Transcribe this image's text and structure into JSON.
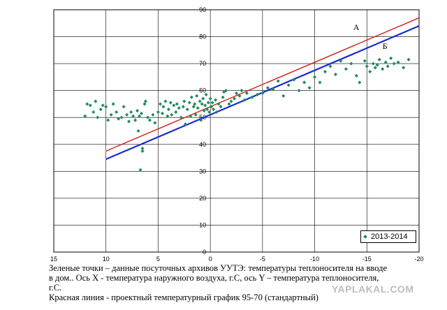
{
  "chart_data": {
    "type": "scatter",
    "x_reversed": true,
    "xlim": [
      15,
      -20
    ],
    "ylim": [
      0,
      90
    ],
    "x_ticks": [
      "15",
      "10",
      "5",
      "0",
      "-5",
      "-10",
      "-15",
      "-20"
    ],
    "y_ticks": [
      "0",
      "10",
      "20",
      "30",
      "40",
      "50",
      "60",
      "70",
      "80",
      "90"
    ],
    "grid": true,
    "legend_position": "bottom-right",
    "series": [
      {
        "name": "2013-2014",
        "color": "#1e8a5a",
        "points": [
          [
            12.0,
            50.5
          ],
          [
            11.8,
            55.0
          ],
          [
            11.5,
            54.5
          ],
          [
            11.2,
            52.0
          ],
          [
            11.0,
            56.0
          ],
          [
            10.8,
            50.0
          ],
          [
            10.5,
            53.0
          ],
          [
            10.3,
            54.5
          ],
          [
            10.0,
            54.0
          ],
          [
            9.8,
            49.0
          ],
          [
            9.5,
            51.0
          ],
          [
            9.3,
            55.0
          ],
          [
            9.0,
            52.0
          ],
          [
            8.8,
            49.5
          ],
          [
            8.5,
            50.0
          ],
          [
            8.3,
            54.0
          ],
          [
            8.0,
            51.0
          ],
          [
            7.8,
            48.5
          ],
          [
            7.6,
            52.0
          ],
          [
            7.4,
            50.5
          ],
          [
            7.2,
            49.0
          ],
          [
            7.0,
            52.5
          ],
          [
            6.9,
            45.0
          ],
          [
            6.8,
            50.5
          ],
          [
            6.7,
            30.5
          ],
          [
            6.6,
            51.5
          ],
          [
            6.5,
            37.5
          ],
          [
            6.5,
            38.5
          ],
          [
            6.3,
            55.0
          ],
          [
            6.2,
            56.0
          ],
          [
            6.0,
            50.0
          ],
          [
            5.8,
            49.0
          ],
          [
            5.5,
            51.0
          ],
          [
            5.3,
            48.0
          ],
          [
            5.0,
            52.0
          ],
          [
            4.8,
            55.0
          ],
          [
            4.6,
            51.5
          ],
          [
            4.5,
            54.0
          ],
          [
            4.3,
            56.0
          ],
          [
            4.1,
            50.5
          ],
          [
            4.0,
            53.0
          ],
          [
            3.8,
            55.5
          ],
          [
            3.7,
            51.0
          ],
          [
            3.5,
            54.5
          ],
          [
            3.3,
            52.0
          ],
          [
            3.2,
            55.0
          ],
          [
            3.0,
            53.5
          ],
          [
            2.8,
            50.0
          ],
          [
            2.6,
            54.0
          ],
          [
            2.5,
            56.0
          ],
          [
            2.4,
            47.5
          ],
          [
            2.2,
            53.0
          ],
          [
            2.0,
            55.5
          ],
          [
            1.9,
            50.5
          ],
          [
            1.8,
            57.5
          ],
          [
            1.6,
            54.0
          ],
          [
            1.5,
            55.0
          ],
          [
            1.4,
            51.0
          ],
          [
            1.3,
            58.0
          ],
          [
            1.2,
            53.5
          ],
          [
            1.0,
            56.0
          ],
          [
            0.9,
            49.0
          ],
          [
            0.8,
            55.0
          ],
          [
            0.7,
            57.0
          ],
          [
            0.6,
            52.5
          ],
          [
            0.5,
            54.5
          ],
          [
            0.4,
            58.5
          ],
          [
            0.3,
            53.0
          ],
          [
            0.2,
            55.5
          ],
          [
            0.1,
            52.0
          ],
          [
            0.0,
            57.0
          ],
          [
            -0.1,
            54.0
          ],
          [
            -0.2,
            55.5
          ],
          [
            -0.3,
            53.0
          ],
          [
            -0.5,
            56.5
          ],
          [
            -0.6,
            52.0
          ],
          [
            -0.8,
            55.0
          ],
          [
            -1.0,
            54.0
          ],
          [
            -1.2,
            57.5
          ],
          [
            -1.3,
            59.5
          ],
          [
            -1.5,
            60.0
          ],
          [
            -1.8,
            55.0
          ],
          [
            -2.0,
            56.0
          ],
          [
            -2.3,
            57.0
          ],
          [
            -2.5,
            59.0
          ],
          [
            -2.8,
            58.0
          ],
          [
            -3.0,
            60.0
          ],
          [
            -3.3,
            56.5
          ],
          [
            -3.5,
            59.0
          ],
          [
            -4.0,
            57.5
          ],
          [
            -4.5,
            58.5
          ],
          [
            -5.0,
            59.0
          ],
          [
            -5.5,
            61.0
          ],
          [
            -6.0,
            60.5
          ],
          [
            -6.5,
            63.5
          ],
          [
            -7.0,
            58.0
          ],
          [
            -7.5,
            62.0
          ],
          [
            -8.0,
            64.0
          ],
          [
            -8.5,
            60.0
          ],
          [
            -9.0,
            63.0
          ],
          [
            -9.5,
            61.0
          ],
          [
            -10.0,
            65.0
          ],
          [
            -10.5,
            63.0
          ],
          [
            -11.0,
            67.0
          ],
          [
            -11.5,
            69.0
          ],
          [
            -12.0,
            66.0
          ],
          [
            -12.5,
            71.0
          ],
          [
            -13.0,
            68.0
          ],
          [
            -13.5,
            70.0
          ],
          [
            -14.0,
            65.5
          ],
          [
            -14.3,
            63.0
          ],
          [
            -14.8,
            71.0
          ],
          [
            -15.0,
            69.0
          ],
          [
            -15.3,
            67.0
          ],
          [
            -15.6,
            70.0
          ],
          [
            -15.8,
            68.5
          ],
          [
            -16.0,
            69.5
          ],
          [
            -16.2,
            71.5
          ],
          [
            -16.5,
            68.0
          ],
          [
            -16.8,
            70.5
          ],
          [
            -17.0,
            69.0
          ],
          [
            -17.3,
            72.0
          ],
          [
            -17.6,
            70.0
          ],
          [
            -18.0,
            70.5
          ],
          [
            -18.5,
            68.5
          ],
          [
            -19.0,
            71.5
          ]
        ]
      }
    ],
    "lines": [
      {
        "label": "А",
        "color": "#d42020",
        "from": [
          10,
          37.5
        ],
        "to": [
          -20,
          87
        ]
      },
      {
        "label": "Б",
        "color": "#1a2ad0",
        "from": [
          10,
          34.5
        ],
        "to": [
          -20,
          84
        ]
      }
    ]
  },
  "legend": {
    "label": "2013-2014"
  },
  "caption": {
    "line1": "Зеленые точки – данные посуточных архивов УУТЭ: температуры теплоносителя на вводе",
    "line2": "в дом.. Ось X  - температура наружного воздуха, г.С, ось Y – температура теплоносителя,",
    "line3": "г.С.",
    "line4": "Красная линия  - проектный температурный график  95-70 (стандартный)"
  },
  "watermark": "YAPLAKAL.COM"
}
